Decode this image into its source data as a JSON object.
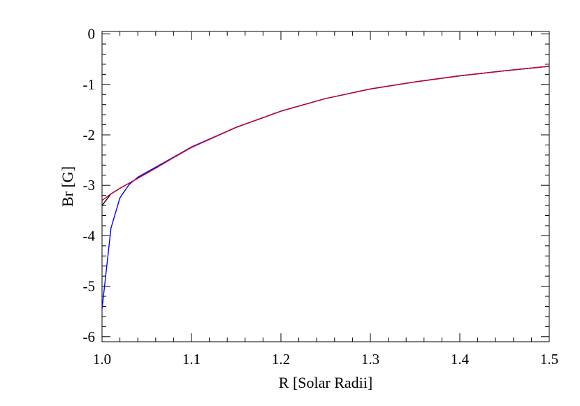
{
  "chart_data": {
    "type": "line",
    "title": "",
    "xlabel": "R [Solar Radii]",
    "ylabel": "Br [G]",
    "xlim": [
      1.0,
      1.5
    ],
    "ylim": [
      -6.1,
      0.05
    ],
    "grid": false,
    "x_ticks": [
      {
        "value": 1.0,
        "label": "1.0"
      },
      {
        "value": 1.1,
        "label": "1.1"
      },
      {
        "value": 1.2,
        "label": "1.2"
      },
      {
        "value": 1.3,
        "label": "1.3"
      },
      {
        "value": 1.4,
        "label": "1.4"
      },
      {
        "value": 1.5,
        "label": "1.5"
      }
    ],
    "y_ticks": [
      {
        "value": 0,
        "label": "0"
      },
      {
        "value": -1,
        "label": "-1"
      },
      {
        "value": -2,
        "label": "-2"
      },
      {
        "value": -3,
        "label": "-3"
      },
      {
        "value": -4,
        "label": "-4"
      },
      {
        "value": -5,
        "label": "-5"
      },
      {
        "value": -6,
        "label": "-6"
      }
    ],
    "series": [
      {
        "color": "#000000",
        "x": [
          1.0,
          1.01,
          1.02,
          1.03,
          1.04,
          1.05,
          1.06,
          1.08,
          1.1,
          1.15,
          1.2,
          1.25,
          1.3,
          1.35,
          1.4,
          1.45,
          1.5
        ],
        "y": [
          -3.4,
          -3.17,
          -3.06,
          -2.96,
          -2.86,
          -2.76,
          -2.66,
          -2.45,
          -2.25,
          -1.85,
          -1.53,
          -1.28,
          -1.09,
          -0.95,
          -0.83,
          -0.73,
          -0.64
        ]
      },
      {
        "color": "#0000ff",
        "x": [
          1.0,
          1.01,
          1.02,
          1.03,
          1.04,
          1.05,
          1.06,
          1.08,
          1.1,
          1.15,
          1.2,
          1.25,
          1.3,
          1.35,
          1.4,
          1.45,
          1.5
        ],
        "y": [
          -5.45,
          -3.85,
          -3.25,
          -2.99,
          -2.84,
          -2.74,
          -2.64,
          -2.44,
          -2.24,
          -1.85,
          -1.53,
          -1.28,
          -1.09,
          -0.95,
          -0.83,
          -0.73,
          -0.64
        ]
      },
      {
        "color": "#cc0033",
        "x": [
          1.0,
          1.01,
          1.02,
          1.03,
          1.04,
          1.05,
          1.06,
          1.08,
          1.1,
          1.15,
          1.2,
          1.25,
          1.3,
          1.35,
          1.4,
          1.45,
          1.5
        ],
        "y": [
          -3.3,
          -3.17,
          -3.06,
          -2.96,
          -2.86,
          -2.76,
          -2.66,
          -2.45,
          -2.25,
          -1.85,
          -1.53,
          -1.28,
          -1.09,
          -0.95,
          -0.83,
          -0.73,
          -0.64
        ]
      }
    ]
  }
}
